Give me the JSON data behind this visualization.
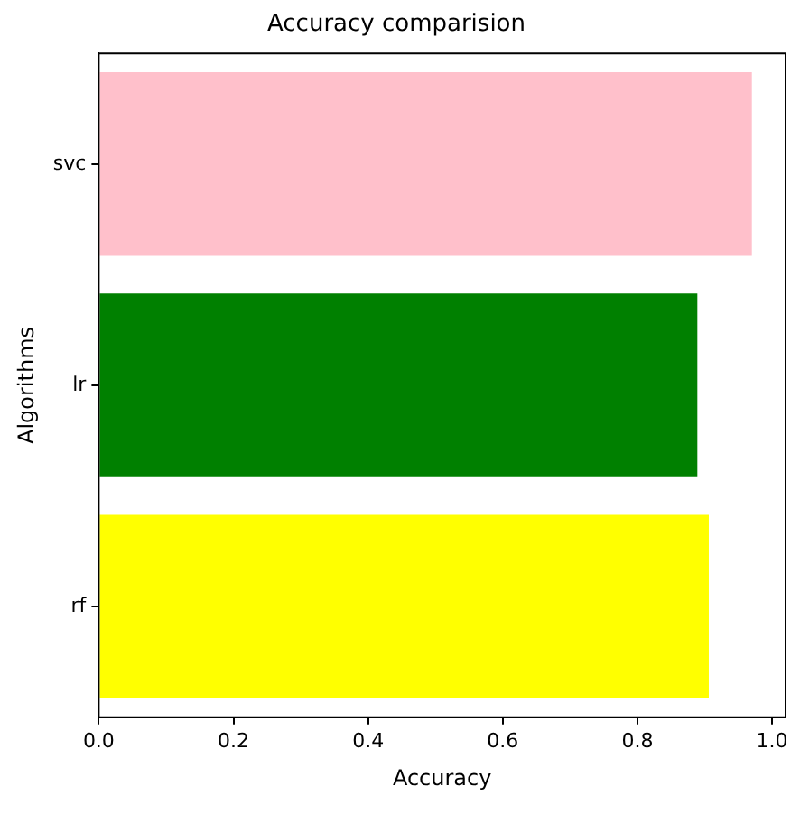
{
  "chart_data": {
    "type": "bar",
    "orientation": "horizontal",
    "title": "Accuracy comparision",
    "xlabel": "Accuracy",
    "ylabel": "Algorithms",
    "categories": [
      "svc",
      "lr",
      "rf"
    ],
    "values": [
      0.97,
      0.889,
      0.906
    ],
    "colors": [
      "#ffc0cb",
      "#008000",
      "#ffff00"
    ],
    "xlim": [
      0,
      1.02
    ],
    "xticks": [
      {
        "value": 0,
        "label": "0.0"
      },
      {
        "value": 0.2,
        "label": "0.2"
      },
      {
        "value": 0.4,
        "label": "0.4"
      },
      {
        "value": 0.6,
        "label": "0.6"
      },
      {
        "value": 0.8,
        "label": "0.8"
      },
      {
        "value": 1,
        "label": "1.0"
      }
    ],
    "grid": false,
    "legend": false
  }
}
